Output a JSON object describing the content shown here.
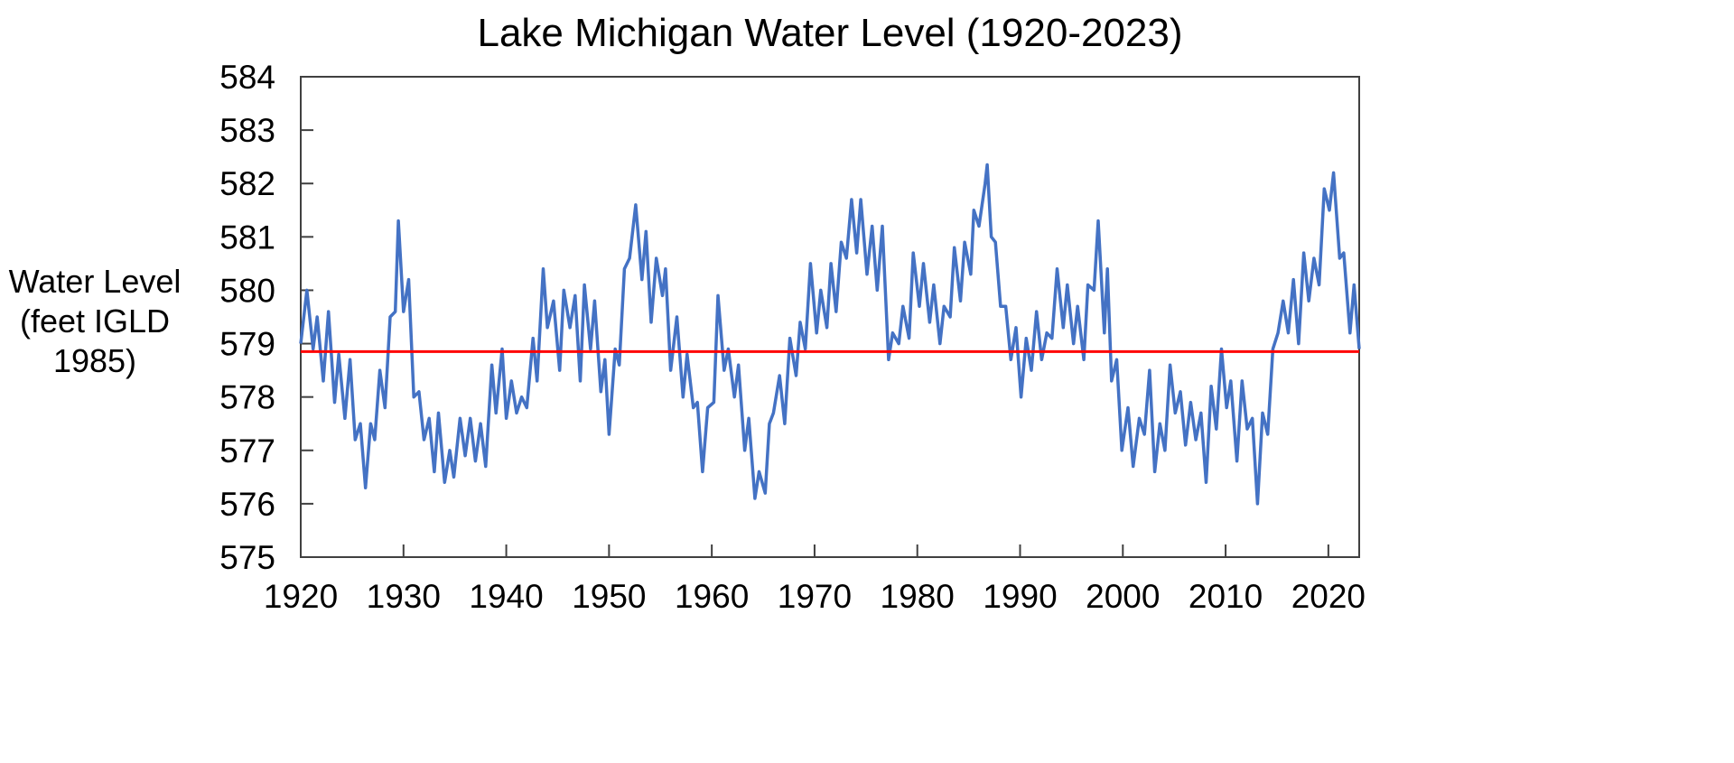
{
  "chart_data": {
    "type": "line",
    "title": "Lake Michigan Water Level (1920-2023)",
    "xlabel": "",
    "ylabel": "Water Level (feet IGLD 1985)",
    "ylabel_lines": [
      "Water Level",
      "(feet IGLD",
      "1985)"
    ],
    "xlim": [
      1920,
      2023
    ],
    "ylim": [
      575,
      584
    ],
    "x_ticks": [
      "1920",
      "1930",
      "1940",
      "1950",
      "1960",
      "1970",
      "1980",
      "1990",
      "2000",
      "2010",
      "2020"
    ],
    "y_ticks": [
      "575",
      "576",
      "577",
      "578",
      "579",
      "580",
      "581",
      "582",
      "583",
      "584"
    ],
    "grid": false,
    "legend": "none",
    "colors": {
      "series": "#4472C4",
      "reference_line": "#FF0000",
      "axis": "#404040"
    },
    "reference_line": {
      "y": 578.85
    },
    "series": [
      {
        "points": [
          [
            1920.0,
            579.0
          ],
          [
            1920.6,
            580.0
          ],
          [
            1921.2,
            578.9
          ],
          [
            1921.6,
            579.5
          ],
          [
            1922.2,
            578.3
          ],
          [
            1922.7,
            579.6
          ],
          [
            1923.3,
            577.9
          ],
          [
            1923.7,
            578.8
          ],
          [
            1924.3,
            577.6
          ],
          [
            1924.8,
            578.7
          ],
          [
            1925.3,
            577.2
          ],
          [
            1925.8,
            577.5
          ],
          [
            1926.3,
            576.3
          ],
          [
            1926.8,
            577.5
          ],
          [
            1927.2,
            577.2
          ],
          [
            1927.7,
            578.5
          ],
          [
            1928.2,
            577.8
          ],
          [
            1928.7,
            579.5
          ],
          [
            1929.2,
            579.6
          ],
          [
            1929.5,
            581.3
          ],
          [
            1930.0,
            579.6
          ],
          [
            1930.5,
            580.2
          ],
          [
            1931.0,
            578.0
          ],
          [
            1931.5,
            578.1
          ],
          [
            1932.0,
            577.2
          ],
          [
            1932.5,
            577.6
          ],
          [
            1933.0,
            576.6
          ],
          [
            1933.4,
            577.7
          ],
          [
            1934.0,
            576.4
          ],
          [
            1934.5,
            577.0
          ],
          [
            1934.9,
            576.5
          ],
          [
            1935.5,
            577.6
          ],
          [
            1936.0,
            576.9
          ],
          [
            1936.5,
            577.6
          ],
          [
            1937.0,
            576.8
          ],
          [
            1937.5,
            577.5
          ],
          [
            1938.0,
            576.7
          ],
          [
            1938.6,
            578.6
          ],
          [
            1939.0,
            577.7
          ],
          [
            1939.6,
            578.9
          ],
          [
            1940.0,
            577.6
          ],
          [
            1940.5,
            578.3
          ],
          [
            1941.0,
            577.7
          ],
          [
            1941.5,
            578.0
          ],
          [
            1942.0,
            577.8
          ],
          [
            1942.6,
            579.1
          ],
          [
            1943.0,
            578.3
          ],
          [
            1943.6,
            580.4
          ],
          [
            1944.0,
            579.3
          ],
          [
            1944.6,
            579.8
          ],
          [
            1945.2,
            578.5
          ],
          [
            1945.6,
            580.0
          ],
          [
            1946.2,
            579.3
          ],
          [
            1946.7,
            579.9
          ],
          [
            1947.2,
            578.3
          ],
          [
            1947.6,
            580.1
          ],
          [
            1948.2,
            578.9
          ],
          [
            1948.6,
            579.8
          ],
          [
            1949.2,
            578.1
          ],
          [
            1949.6,
            578.7
          ],
          [
            1950.0,
            577.3
          ],
          [
            1950.6,
            578.9
          ],
          [
            1951.0,
            578.6
          ],
          [
            1951.5,
            580.4
          ],
          [
            1952.0,
            580.6
          ],
          [
            1952.6,
            581.6
          ],
          [
            1953.2,
            580.2
          ],
          [
            1953.6,
            581.1
          ],
          [
            1954.1,
            579.4
          ],
          [
            1954.6,
            580.6
          ],
          [
            1955.2,
            579.9
          ],
          [
            1955.5,
            580.4
          ],
          [
            1956.0,
            578.5
          ],
          [
            1956.6,
            579.5
          ],
          [
            1957.2,
            578.0
          ],
          [
            1957.6,
            578.8
          ],
          [
            1958.2,
            577.8
          ],
          [
            1958.6,
            577.9
          ],
          [
            1959.1,
            576.6
          ],
          [
            1959.6,
            577.8
          ],
          [
            1960.2,
            577.9
          ],
          [
            1960.6,
            579.9
          ],
          [
            1961.2,
            578.5
          ],
          [
            1961.6,
            578.9
          ],
          [
            1962.2,
            578.0
          ],
          [
            1962.6,
            578.6
          ],
          [
            1963.2,
            577.0
          ],
          [
            1963.6,
            577.6
          ],
          [
            1964.2,
            576.1
          ],
          [
            1964.6,
            576.6
          ],
          [
            1965.2,
            576.2
          ],
          [
            1965.6,
            577.5
          ],
          [
            1966.0,
            577.7
          ],
          [
            1966.6,
            578.4
          ],
          [
            1967.1,
            577.5
          ],
          [
            1967.6,
            579.1
          ],
          [
            1968.2,
            578.4
          ],
          [
            1968.6,
            579.4
          ],
          [
            1969.1,
            578.9
          ],
          [
            1969.6,
            580.5
          ],
          [
            1970.2,
            579.2
          ],
          [
            1970.6,
            580.0
          ],
          [
            1971.2,
            579.3
          ],
          [
            1971.6,
            580.5
          ],
          [
            1972.1,
            579.6
          ],
          [
            1972.6,
            580.9
          ],
          [
            1973.1,
            580.6
          ],
          [
            1973.6,
            581.7
          ],
          [
            1974.1,
            580.7
          ],
          [
            1974.5,
            581.7
          ],
          [
            1975.1,
            580.3
          ],
          [
            1975.6,
            581.2
          ],
          [
            1976.1,
            580.0
          ],
          [
            1976.6,
            581.2
          ],
          [
            1977.2,
            578.7
          ],
          [
            1977.6,
            579.2
          ],
          [
            1978.2,
            579.0
          ],
          [
            1978.6,
            579.7
          ],
          [
            1979.2,
            579.1
          ],
          [
            1979.6,
            580.7
          ],
          [
            1980.2,
            579.7
          ],
          [
            1980.6,
            580.5
          ],
          [
            1981.2,
            579.4
          ],
          [
            1981.6,
            580.1
          ],
          [
            1982.2,
            579.0
          ],
          [
            1982.6,
            579.7
          ],
          [
            1983.2,
            579.5
          ],
          [
            1983.6,
            580.8
          ],
          [
            1984.2,
            579.8
          ],
          [
            1984.6,
            580.9
          ],
          [
            1985.2,
            580.3
          ],
          [
            1985.5,
            581.5
          ],
          [
            1986.0,
            581.2
          ],
          [
            1986.6,
            582.0
          ],
          [
            1986.8,
            582.35
          ],
          [
            1987.2,
            581.0
          ],
          [
            1987.6,
            580.9
          ],
          [
            1988.1,
            579.7
          ],
          [
            1988.6,
            579.7
          ],
          [
            1989.1,
            578.7
          ],
          [
            1989.6,
            579.3
          ],
          [
            1990.1,
            578.0
          ],
          [
            1990.6,
            579.1
          ],
          [
            1991.1,
            578.5
          ],
          [
            1991.6,
            579.6
          ],
          [
            1992.1,
            578.7
          ],
          [
            1992.6,
            579.2
          ],
          [
            1993.1,
            579.1
          ],
          [
            1993.6,
            580.4
          ],
          [
            1994.2,
            579.3
          ],
          [
            1994.6,
            580.1
          ],
          [
            1995.2,
            579.0
          ],
          [
            1995.6,
            579.7
          ],
          [
            1996.2,
            578.7
          ],
          [
            1996.6,
            580.1
          ],
          [
            1997.2,
            580.0
          ],
          [
            1997.6,
            581.3
          ],
          [
            1998.2,
            579.2
          ],
          [
            1998.5,
            580.4
          ],
          [
            1998.9,
            578.3
          ],
          [
            1999.4,
            578.7
          ],
          [
            1999.9,
            577.0
          ],
          [
            2000.5,
            577.8
          ],
          [
            2001.0,
            576.7
          ],
          [
            2001.6,
            577.6
          ],
          [
            2002.1,
            577.3
          ],
          [
            2002.6,
            578.5
          ],
          [
            2003.1,
            576.6
          ],
          [
            2003.6,
            577.5
          ],
          [
            2004.1,
            577.0
          ],
          [
            2004.6,
            578.6
          ],
          [
            2005.1,
            577.7
          ],
          [
            2005.6,
            578.1
          ],
          [
            2006.1,
            577.1
          ],
          [
            2006.6,
            577.9
          ],
          [
            2007.1,
            577.2
          ],
          [
            2007.6,
            577.7
          ],
          [
            2008.1,
            576.4
          ],
          [
            2008.6,
            578.2
          ],
          [
            2009.1,
            577.4
          ],
          [
            2009.6,
            578.9
          ],
          [
            2010.1,
            577.8
          ],
          [
            2010.5,
            578.3
          ],
          [
            2011.1,
            576.8
          ],
          [
            2011.6,
            578.3
          ],
          [
            2012.1,
            577.4
          ],
          [
            2012.6,
            577.6
          ],
          [
            2013.1,
            576.0
          ],
          [
            2013.6,
            577.7
          ],
          [
            2014.1,
            577.3
          ],
          [
            2014.6,
            578.9
          ],
          [
            2015.1,
            579.2
          ],
          [
            2015.6,
            579.8
          ],
          [
            2016.1,
            579.2
          ],
          [
            2016.6,
            580.2
          ],
          [
            2017.1,
            579.0
          ],
          [
            2017.6,
            580.7
          ],
          [
            2018.1,
            579.8
          ],
          [
            2018.6,
            580.6
          ],
          [
            2019.1,
            580.1
          ],
          [
            2019.6,
            581.9
          ],
          [
            2020.1,
            581.5
          ],
          [
            2020.5,
            582.2
          ],
          [
            2021.1,
            580.6
          ],
          [
            2021.5,
            580.7
          ],
          [
            2022.1,
            579.2
          ],
          [
            2022.5,
            580.1
          ],
          [
            2023.0,
            578.9
          ]
        ]
      }
    ]
  }
}
